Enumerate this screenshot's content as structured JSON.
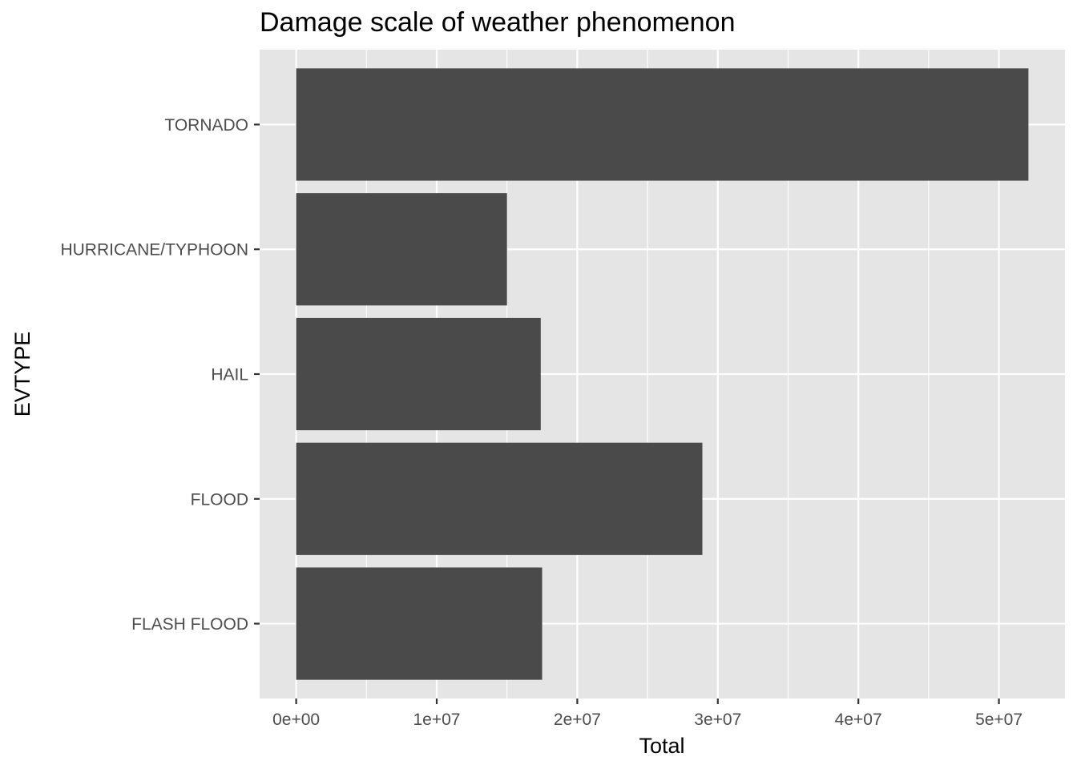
{
  "chart_data": {
    "type": "bar",
    "orientation": "horizontal",
    "title": "Damage scale of weather phenomenon",
    "xlabel": "Total",
    "ylabel": "EVTYPE",
    "categories": [
      "FLASH FLOOD",
      "FLOOD",
      "HAIL",
      "HURRICANE/TYPHOON",
      "TORNADO"
    ],
    "values": [
      17500000,
      28900000,
      17400000,
      15000000,
      52100000
    ],
    "x_ticks": [
      0,
      10000000,
      20000000,
      30000000,
      40000000,
      50000000
    ],
    "x_tick_labels": [
      "0e+00",
      "1e+07",
      "2e+07",
      "3e+07",
      "4e+07",
      "5e+07"
    ],
    "xlim": [
      -2600000,
      54700000
    ],
    "grid": true,
    "colors": {
      "panel_background": "#e5e5e5",
      "gridline": "#ffffff",
      "bar": "#4a4a4a",
      "tick": "#333333",
      "tick_label": "#4d4d4d"
    }
  }
}
